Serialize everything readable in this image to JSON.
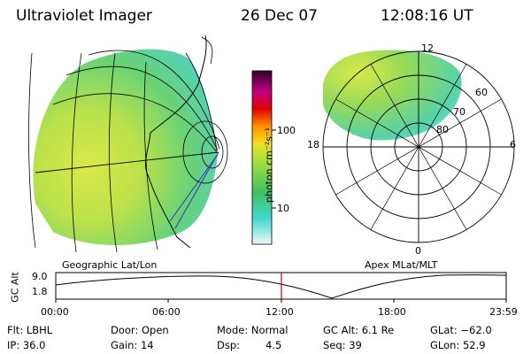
{
  "header": {
    "instrument": "Ultraviolet Imager",
    "date": "26 Dec 07",
    "time": "12:08:16 UT"
  },
  "geo_panel": {
    "label": "Geographic Lat/Lon"
  },
  "polar_panel": {
    "label": "Apex MLat/MLT",
    "mlt_labels": {
      "top": "12",
      "left": "18",
      "right": "6",
      "bottom": "0"
    },
    "lat_labels": [
      "60",
      "70",
      "80"
    ]
  },
  "colorbar": {
    "unit": "photon cm⁻²s⁻¹",
    "ticks": [
      "100",
      "10"
    ],
    "scale": "log",
    "colors": [
      "#e8f4f4",
      "#40d8d0",
      "#40c060",
      "#a8e040",
      "#f0e020",
      "#ff9000",
      "#e00000",
      "#c00080",
      "#400040"
    ]
  },
  "altitude_plot": {
    "ylabel": "GC Alt",
    "yticks": [
      "9.0",
      "1.8"
    ],
    "xticks": [
      "00:00",
      "06:00",
      "12:00",
      "18:00",
      "23:59"
    ],
    "marker_time": "12:08:16",
    "marker_color": "#d00000"
  },
  "status": {
    "row1": {
      "filter": "Flt: LBHL",
      "door": "Door: Open",
      "mode": "Mode: Normal",
      "gc_alt": "GC Alt: 6.1 Re",
      "glat": "GLat: −62.0"
    },
    "row2": {
      "ip": "IP: 36.0",
      "gain": "Gain: 14",
      "dsp_label": "Dsp:",
      "dsp_value": "4.5",
      "seq": "Seq: 39",
      "glon": "GLon: 52.9"
    }
  }
}
